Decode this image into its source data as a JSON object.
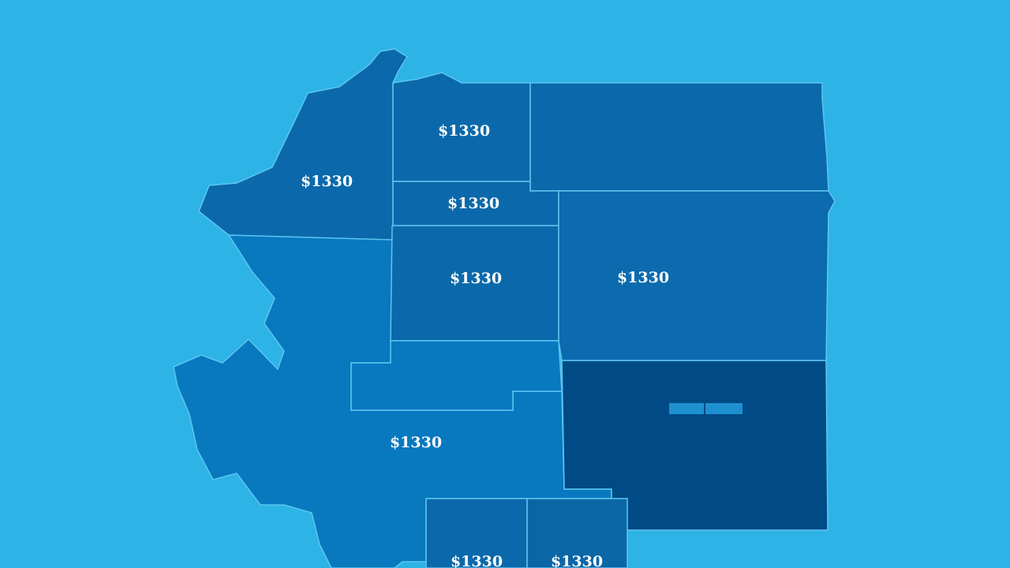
{
  "map": {
    "colors": {
      "background": "#2db3e6",
      "region_mid": "#0b69ab",
      "region_light": "#0878bf",
      "region_dark": "#004a86",
      "border": "#5cc6f0",
      "label": "#ffffff"
    },
    "regions": [
      {
        "id": "northwest",
        "label": "$1330"
      },
      {
        "id": "north-central",
        "label": "$1330"
      },
      {
        "id": "northeast",
        "label": ""
      },
      {
        "id": "central-strip",
        "label": "$1330"
      },
      {
        "id": "central",
        "label": "$1330"
      },
      {
        "id": "east",
        "label": "$1330"
      },
      {
        "id": "southeast",
        "label": ""
      },
      {
        "id": "southwest",
        "label": "$1330"
      },
      {
        "id": "south-strip",
        "label": ""
      },
      {
        "id": "south-1",
        "label": "$1330"
      },
      {
        "id": "south-2",
        "label": "$1330"
      }
    ]
  }
}
